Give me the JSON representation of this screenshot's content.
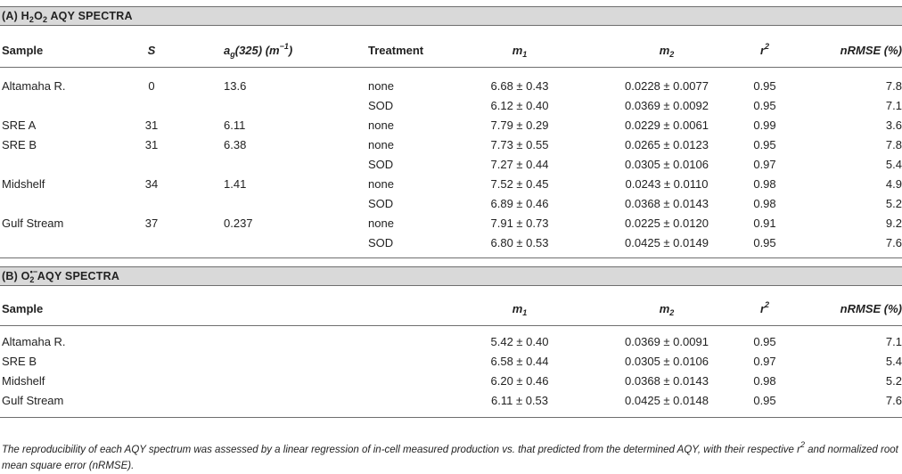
{
  "section_a": {
    "title_prefix": "(A) H",
    "title_sub1": "2",
    "title_mid": "O",
    "title_sub2": "2",
    "title_suffix": " AQY SPECTRA",
    "headers": {
      "sample": "Sample",
      "s": "S",
      "ag_main": "a",
      "ag_sub": "g",
      "ag_rest": "(325) (m",
      "ag_sup": "−1",
      "ag_close": ")",
      "treatment": "Treatment",
      "m1_main": "m",
      "m1_sub": "1",
      "m2_main": "m",
      "m2_sub": "2",
      "r2_main": "r",
      "r2_sup": "2",
      "nrmse": "nRMSE (%)"
    },
    "rows": [
      {
        "sample": "Altamaha R.",
        "s": "0",
        "ag": "13.6",
        "treatment": "none",
        "m1": "6.68 ± 0.43",
        "m2": "0.0228 ± 0.0077",
        "r2": "0.95",
        "nrmse": "7.8"
      },
      {
        "sample": "",
        "s": "",
        "ag": "",
        "treatment": "SOD",
        "m1": "6.12 ± 0.40",
        "m2": "0.0369 ± 0.0092",
        "r2": "0.95",
        "nrmse": "7.1"
      },
      {
        "sample": "SRE A",
        "s": "31",
        "ag": "6.11",
        "treatment": "none",
        "m1": "7.79 ± 0.29",
        "m2": "0.0229 ± 0.0061",
        "r2": "0.99",
        "nrmse": "3.6"
      },
      {
        "sample": "SRE B",
        "s": "31",
        "ag": "6.38",
        "treatment": "none",
        "m1": "7.73 ± 0.55",
        "m2": "0.0265 ± 0.0123",
        "r2": "0.95",
        "nrmse": "7.8"
      },
      {
        "sample": "",
        "s": "",
        "ag": "",
        "treatment": "SOD",
        "m1": "7.27 ± 0.44",
        "m2": "0.0305 ± 0.0106",
        "r2": "0.97",
        "nrmse": "5.4"
      },
      {
        "sample": "Midshelf",
        "s": "34",
        "ag": "1.41",
        "treatment": "none",
        "m1": "7.52 ± 0.45",
        "m2": "0.0243 ± 0.0110",
        "r2": "0.98",
        "nrmse": "4.9"
      },
      {
        "sample": "",
        "s": "",
        "ag": "",
        "treatment": "SOD",
        "m1": "6.89 ± 0.46",
        "m2": "0.0368 ± 0.0143",
        "r2": "0.98",
        "nrmse": "5.2"
      },
      {
        "sample": "Gulf Stream",
        "s": "37",
        "ag": "0.237",
        "treatment": "none",
        "m1": "7.91 ± 0.73",
        "m2": "0.0225 ± 0.0120",
        "r2": "0.91",
        "nrmse": "9.2"
      },
      {
        "sample": "",
        "s": "",
        "ag": "",
        "treatment": "SOD",
        "m1": "6.80 ± 0.53",
        "m2": "0.0425 ± 0.0149",
        "r2": "0.95",
        "nrmse": "7.6"
      }
    ]
  },
  "section_b": {
    "title_prefix": "(B) O",
    "title_sup": "•−",
    "title_sub": "2",
    "title_suffix": " AQY SPECTRA",
    "headers": {
      "sample": "Sample",
      "m1_main": "m",
      "m1_sub": "1",
      "m2_main": "m",
      "m2_sub": "2",
      "r2_main": "r",
      "r2_sup": "2",
      "nrmse": "nRMSE (%)"
    },
    "rows": [
      {
        "sample": "Altamaha R.",
        "m1": "5.42 ± 0.40",
        "m2": "0.0369 ± 0.0091",
        "r2": "0.95",
        "nrmse": "7.1"
      },
      {
        "sample": "SRE B",
        "m1": "6.58 ± 0.44",
        "m2": "0.0305 ± 0.0106",
        "r2": "0.97",
        "nrmse": "5.4"
      },
      {
        "sample": "Midshelf",
        "m1": "6.20 ± 0.46",
        "m2": "0.0368 ± 0.0143",
        "r2": "0.98",
        "nrmse": "5.2"
      },
      {
        "sample": "Gulf Stream",
        "m1": "6.11 ± 0.53",
        "m2": "0.0425 ± 0.0148",
        "r2": "0.95",
        "nrmse": "7.6"
      }
    ]
  },
  "footnote": {
    "part1": "The reproducibility of each AQY spectrum was assessed by a linear regression of in-cell measured production vs. that predicted from the determined AQY, with their respective r",
    "sup": "2",
    "part2": " and normalized root mean square error (nRMSE)."
  }
}
